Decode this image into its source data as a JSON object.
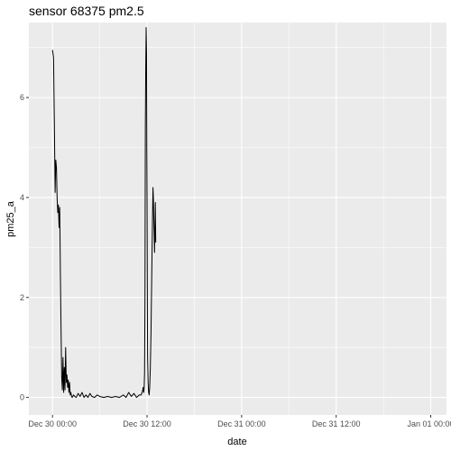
{
  "chart_data": {
    "type": "line",
    "title": "sensor 68375 pm2.5",
    "xlabel": "date",
    "ylabel": "pm25_a",
    "x_ticks": [
      "Dec 30 00:00",
      "Dec 30 12:00",
      "Dec 31 00:00",
      "Dec 31 12:00",
      "Jan 01 00:00"
    ],
    "y_ticks": [
      "0",
      "2",
      "4",
      "6"
    ],
    "xlim": [
      "2023-12-29 21:00",
      "2024-01-01 02:00"
    ],
    "ylim": [
      -0.35,
      7.5
    ],
    "grid": true,
    "background": "#ebebeb",
    "line_color": "#000000",
    "series": [
      {
        "x": [
          "2023-12-30 00:00",
          "2023-12-30 00:08",
          "2023-12-30 00:15",
          "2023-12-30 00:20",
          "2023-12-30 00:25",
          "2023-12-30 00:30",
          "2023-12-30 00:35",
          "2023-12-30 00:40",
          "2023-12-30 00:45",
          "2023-12-30 00:50",
          "2023-12-30 00:55",
          "2023-12-30 01:00",
          "2023-12-30 01:05",
          "2023-12-30 01:10",
          "2023-12-30 01:15",
          "2023-12-30 01:20",
          "2023-12-30 01:25",
          "2023-12-30 01:30",
          "2023-12-30 01:35",
          "2023-12-30 01:40",
          "2023-12-30 01:45",
          "2023-12-30 01:50",
          "2023-12-30 01:55",
          "2023-12-30 02:00",
          "2023-12-30 02:05",
          "2023-12-30 02:10",
          "2023-12-30 02:15",
          "2023-12-30 02:20",
          "2023-12-30 02:25",
          "2023-12-30 02:30",
          "2023-12-30 02:40",
          "2023-12-30 02:50",
          "2023-12-30 03:00",
          "2023-12-30 03:15",
          "2023-12-30 03:30",
          "2023-12-30 03:45",
          "2023-12-30 04:00",
          "2023-12-30 04:15",
          "2023-12-30 04:30",
          "2023-12-30 04:45",
          "2023-12-30 05:00",
          "2023-12-30 05:20",
          "2023-12-30 05:40",
          "2023-12-30 06:00",
          "2023-12-30 06:30",
          "2023-12-30 07:00",
          "2023-12-30 07:30",
          "2023-12-30 08:00",
          "2023-12-30 08:30",
          "2023-12-30 09:00",
          "2023-12-30 09:20",
          "2023-12-30 09:40",
          "2023-12-30 10:00",
          "2023-12-30 10:20",
          "2023-12-30 10:40",
          "2023-12-30 11:00",
          "2023-12-30 11:15",
          "2023-12-30 11:25",
          "2023-12-30 11:30",
          "2023-12-30 11:35",
          "2023-12-30 11:38",
          "2023-12-30 11:41",
          "2023-12-30 11:44",
          "2023-12-30 11:47",
          "2023-12-30 11:50",
          "2023-12-30 11:53",
          "2023-12-30 11:56",
          "2023-12-30 11:58",
          "2023-12-30 12:00",
          "2023-12-30 12:02",
          "2023-12-30 12:04",
          "2023-12-30 12:08",
          "2023-12-30 12:12",
          "2023-12-30 12:16",
          "2023-12-30 12:20",
          "2023-12-30 12:25",
          "2023-12-30 12:30",
          "2023-12-30 12:35",
          "2023-12-30 12:40",
          "2023-12-30 12:45",
          "2023-12-30 12:48",
          "2023-12-30 12:51",
          "2023-12-30 12:54",
          "2023-12-30 12:57",
          "2023-12-30 13:00",
          "2023-12-30 13:03",
          "2023-12-30 13:06"
        ],
        "values": [
          6.95,
          6.8,
          5.3,
          4.1,
          4.75,
          4.6,
          4.0,
          3.7,
          3.85,
          3.4,
          3.8,
          2.5,
          1.4,
          0.4,
          0.15,
          0.8,
          0.1,
          0.6,
          0.15,
          1.0,
          0.3,
          0.45,
          0.2,
          0.35,
          0.1,
          0.3,
          0.05,
          0.1,
          0.02,
          0.0,
          0.05,
          0.02,
          0.0,
          0.08,
          0.02,
          0.1,
          0.0,
          0.05,
          0.0,
          0.08,
          0.02,
          0.0,
          0.05,
          0.02,
          0.0,
          0.02,
          0.0,
          0.02,
          0.0,
          0.05,
          0.0,
          0.1,
          0.02,
          0.08,
          0.0,
          0.05,
          0.05,
          0.12,
          0.2,
          0.1,
          0.2,
          0.5,
          2.0,
          5.4,
          6.6,
          7.4,
          6.9,
          5.0,
          3.9,
          2.3,
          0.8,
          0.3,
          0.1,
          0.05,
          0.2,
          0.6,
          1.3,
          2.3,
          3.3,
          4.2,
          4.0,
          3.6,
          3.3,
          2.9,
          3.4,
          3.9,
          3.1
        ]
      }
    ]
  }
}
